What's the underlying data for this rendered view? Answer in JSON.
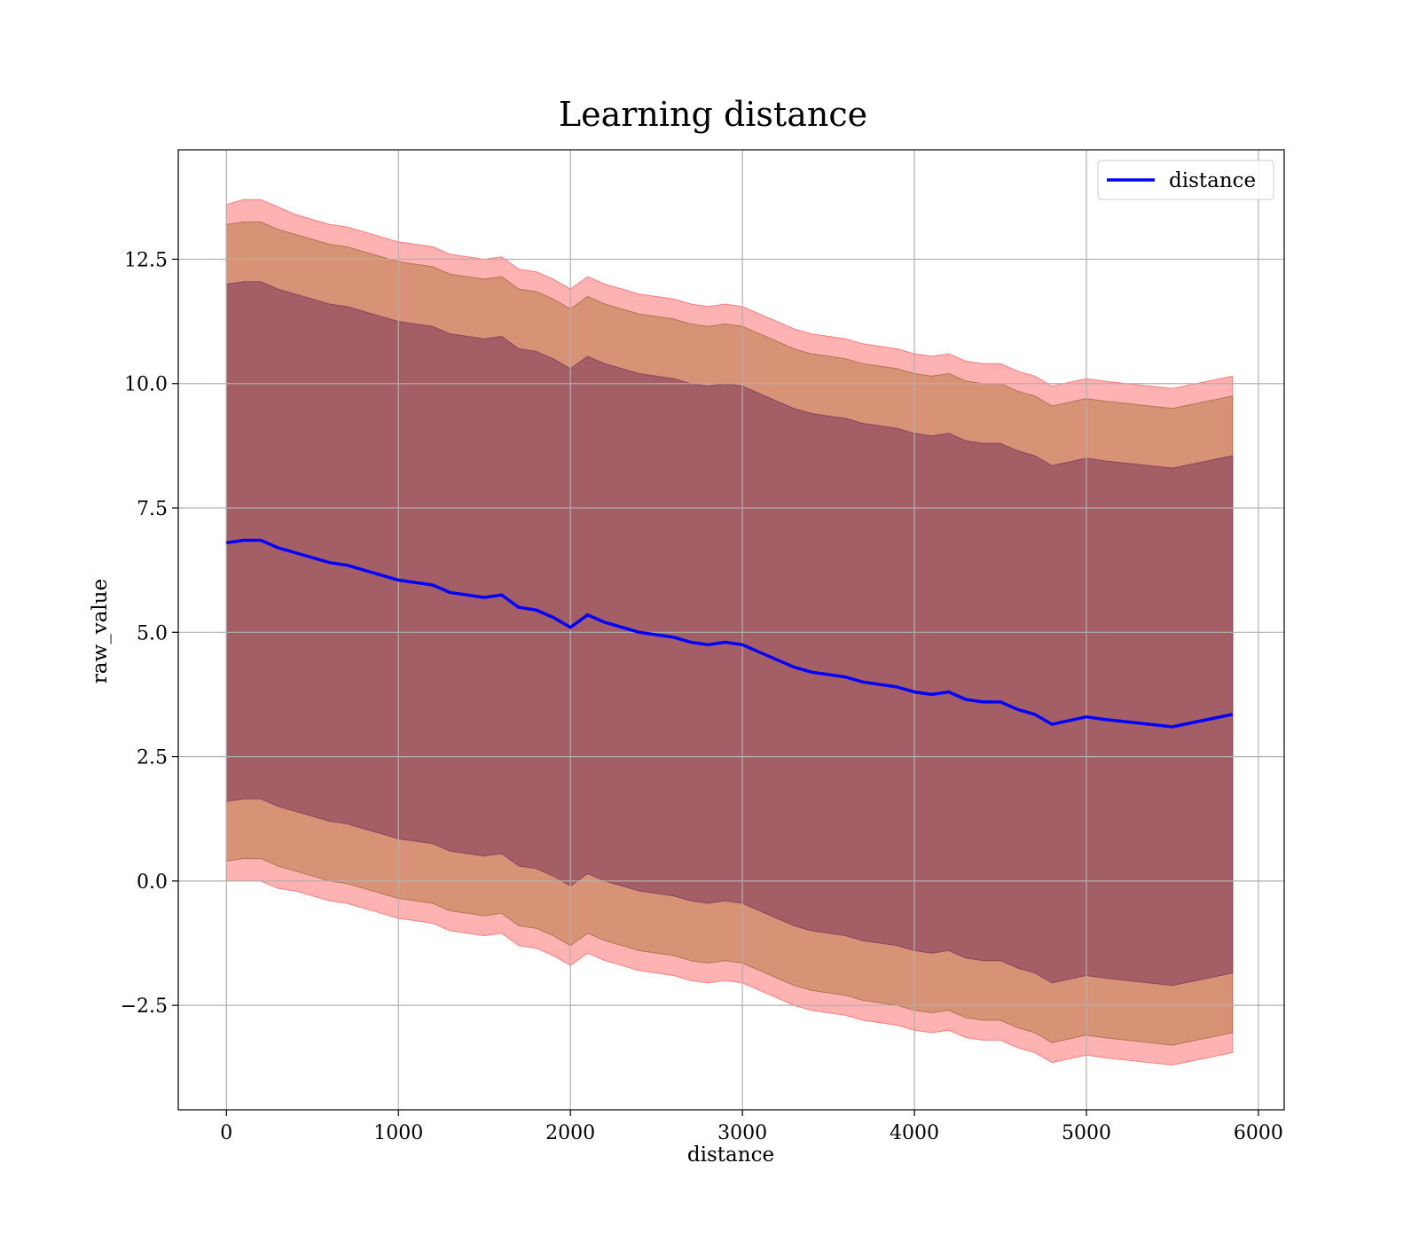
{
  "chart_data": {
    "type": "line",
    "title": "Learning distance",
    "xlabel": "distance",
    "ylabel": "raw_value",
    "xlim": [
      -280,
      6150
    ],
    "ylim": [
      -4.6,
      14.7
    ],
    "x_ticks": [
      0,
      1000,
      2000,
      3000,
      4000,
      5000,
      6000
    ],
    "x_tick_labels": [
      "0",
      "1000",
      "2000",
      "3000",
      "4000",
      "5000",
      "6000"
    ],
    "y_ticks": [
      -2.5,
      0.0,
      2.5,
      5.0,
      7.5,
      10.0,
      12.5
    ],
    "y_tick_labels": [
      "−2.5",
      "0.0",
      "2.5",
      "5.0",
      "7.5",
      "10.0",
      "12.5"
    ],
    "grid": true,
    "legend": {
      "position": "top-right",
      "entries": [
        "distance"
      ]
    },
    "colors": {
      "line": "#0000ff",
      "band_outer": "#ff0000",
      "band_middle": "#8b6a3a",
      "band_inner": "#6a2a55"
    },
    "series": [
      {
        "name": "distance",
        "x": [
          0,
          100,
          200,
          300,
          400,
          500,
          600,
          700,
          800,
          900,
          1000,
          1100,
          1200,
          1300,
          1400,
          1500,
          1600,
          1700,
          1800,
          1900,
          2000,
          2100,
          2200,
          2300,
          2400,
          2500,
          2600,
          2700,
          2800,
          2900,
          3000,
          3100,
          3200,
          3300,
          3400,
          3500,
          3600,
          3700,
          3800,
          3900,
          4000,
          4100,
          4200,
          4300,
          4400,
          4500,
          4600,
          4700,
          4800,
          5000,
          5100,
          5500,
          5850
        ],
        "y": [
          6.8,
          6.85,
          6.85,
          6.7,
          6.6,
          6.5,
          6.4,
          6.35,
          6.25,
          6.15,
          6.05,
          6.0,
          5.95,
          5.8,
          5.75,
          5.7,
          5.75,
          5.5,
          5.45,
          5.3,
          5.1,
          5.35,
          5.2,
          5.1,
          5.0,
          4.95,
          4.9,
          4.8,
          4.75,
          4.8,
          4.75,
          4.6,
          4.45,
          4.3,
          4.2,
          4.15,
          4.1,
          4.0,
          3.95,
          3.9,
          3.8,
          3.75,
          3.8,
          3.65,
          3.6,
          3.6,
          3.45,
          3.35,
          3.15,
          3.3,
          3.25,
          3.1,
          3.35
        ]
      }
    ],
    "bands": [
      {
        "kind": "outer",
        "lower": [
          0.0,
          0.0,
          0.0,
          -0.15,
          -0.2,
          -0.3,
          -0.4,
          -0.45,
          -0.55,
          -0.65,
          -0.75,
          -0.8,
          -0.85,
          -1.0,
          -1.05,
          -1.1,
          -1.05,
          -1.3,
          -1.35,
          -1.5,
          -1.7,
          -1.45,
          -1.6,
          -1.7,
          -1.8,
          -1.85,
          -1.9,
          -2.0,
          -2.05,
          -2.0,
          -2.05,
          -2.2,
          -2.35,
          -2.5,
          -2.6,
          -2.65,
          -2.7,
          -2.8,
          -2.85,
          -2.9,
          -3.0,
          -3.05,
          -3.0,
          -3.15,
          -3.2,
          -3.2,
          -3.35,
          -3.45,
          -3.65,
          -3.5,
          -3.55,
          -3.7,
          -3.45
        ],
        "upper": [
          13.6,
          13.7,
          13.7,
          13.55,
          13.4,
          13.3,
          13.2,
          13.15,
          13.05,
          12.95,
          12.85,
          12.8,
          12.75,
          12.6,
          12.55,
          12.5,
          12.55,
          12.3,
          12.25,
          12.1,
          11.9,
          12.15,
          12.0,
          11.9,
          11.8,
          11.75,
          11.7,
          11.6,
          11.55,
          11.6,
          11.55,
          11.4,
          11.25,
          11.1,
          11.0,
          10.95,
          10.9,
          10.8,
          10.75,
          10.7,
          10.6,
          10.55,
          10.6,
          10.45,
          10.4,
          10.4,
          10.25,
          10.15,
          9.95,
          10.1,
          10.05,
          9.9,
          10.15
        ]
      },
      {
        "kind": "middle",
        "lower": [
          0.4,
          0.45,
          0.45,
          0.3,
          0.2,
          0.1,
          0.0,
          -0.05,
          -0.15,
          -0.25,
          -0.35,
          -0.4,
          -0.45,
          -0.6,
          -0.65,
          -0.7,
          -0.65,
          -0.9,
          -0.95,
          -1.1,
          -1.3,
          -1.05,
          -1.2,
          -1.3,
          -1.4,
          -1.45,
          -1.5,
          -1.6,
          -1.65,
          -1.6,
          -1.65,
          -1.8,
          -1.95,
          -2.1,
          -2.2,
          -2.25,
          -2.3,
          -2.4,
          -2.45,
          -2.5,
          -2.6,
          -2.65,
          -2.6,
          -2.75,
          -2.8,
          -2.8,
          -2.95,
          -3.05,
          -3.25,
          -3.1,
          -3.15,
          -3.3,
          -3.05
        ],
        "upper": [
          13.2,
          13.25,
          13.25,
          13.1,
          13.0,
          12.9,
          12.8,
          12.75,
          12.65,
          12.55,
          12.45,
          12.4,
          12.35,
          12.2,
          12.15,
          12.1,
          12.15,
          11.9,
          11.85,
          11.7,
          11.5,
          11.75,
          11.6,
          11.5,
          11.4,
          11.35,
          11.3,
          11.2,
          11.15,
          11.2,
          11.15,
          11.0,
          10.85,
          10.7,
          10.6,
          10.55,
          10.5,
          10.4,
          10.35,
          10.3,
          10.2,
          10.15,
          10.2,
          10.05,
          10.0,
          10.0,
          9.85,
          9.75,
          9.55,
          9.7,
          9.65,
          9.5,
          9.75
        ]
      },
      {
        "kind": "inner",
        "lower": [
          1.6,
          1.65,
          1.65,
          1.5,
          1.4,
          1.3,
          1.2,
          1.15,
          1.05,
          0.95,
          0.85,
          0.8,
          0.75,
          0.6,
          0.55,
          0.5,
          0.55,
          0.3,
          0.25,
          0.1,
          -0.1,
          0.15,
          0.0,
          -0.1,
          -0.2,
          -0.25,
          -0.3,
          -0.4,
          -0.45,
          -0.4,
          -0.45,
          -0.6,
          -0.75,
          -0.9,
          -1.0,
          -1.05,
          -1.1,
          -1.2,
          -1.25,
          -1.3,
          -1.4,
          -1.45,
          -1.4,
          -1.55,
          -1.6,
          -1.6,
          -1.75,
          -1.85,
          -2.05,
          -1.9,
          -1.95,
          -2.1,
          -1.85
        ],
        "upper": [
          12.0,
          12.05,
          12.05,
          11.9,
          11.8,
          11.7,
          11.6,
          11.55,
          11.45,
          11.35,
          11.25,
          11.2,
          11.15,
          11.0,
          10.95,
          10.9,
          10.95,
          10.7,
          10.65,
          10.5,
          10.3,
          10.55,
          10.4,
          10.3,
          10.2,
          10.15,
          10.1,
          10.0,
          9.95,
          10.0,
          9.95,
          9.8,
          9.65,
          9.5,
          9.4,
          9.35,
          9.3,
          9.2,
          9.15,
          9.1,
          9.0,
          8.95,
          9.0,
          8.85,
          8.8,
          8.8,
          8.65,
          8.55,
          8.35,
          8.5,
          8.45,
          8.3,
          8.55
        ]
      }
    ]
  }
}
